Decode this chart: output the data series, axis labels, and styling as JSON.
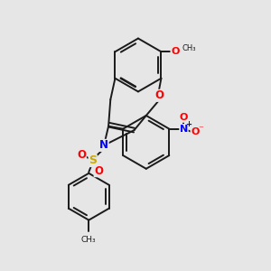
{
  "background_color": "#e6e6e6",
  "bond_color": "#1a1a1a",
  "bond_width": 1.4,
  "figsize": [
    3.0,
    3.0
  ],
  "dpi": 100,
  "atom_colors": {
    "N": "#0000ff",
    "O": "#ff0000",
    "S": "#ccaa00",
    "C": "#1a1a1a"
  }
}
